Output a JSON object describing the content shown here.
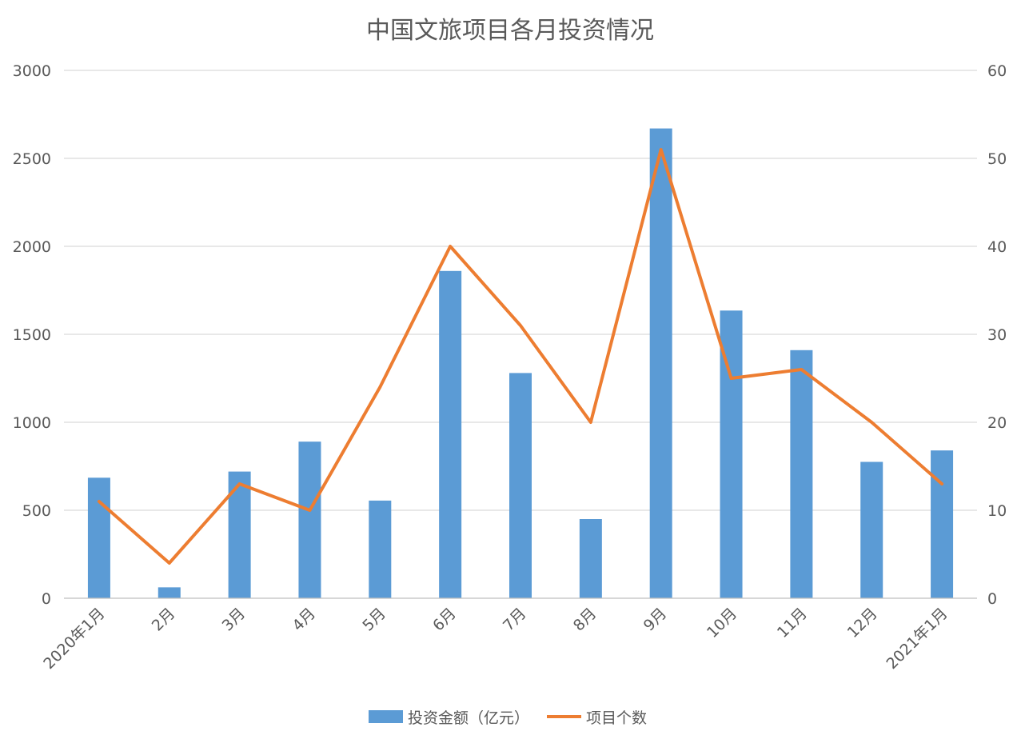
{
  "chart_data": {
    "type": "bar",
    "title": "中国文旅项目各月投资情况",
    "categories": [
      "2020年1月",
      "2月",
      "3月",
      "4月",
      "5月",
      "6月",
      "7月",
      "8月",
      "9月",
      "10月",
      "11月",
      "12月",
      "2021年1月"
    ],
    "series": [
      {
        "name": "投资金额（亿元）",
        "type": "bar",
        "axis": "left",
        "color": "#5B9BD5",
        "values": [
          685,
          62,
          720,
          890,
          555,
          1860,
          1280,
          450,
          2670,
          1635,
          1410,
          775,
          840
        ]
      },
      {
        "name": "项目个数",
        "type": "line",
        "axis": "right",
        "color": "#ED7D31",
        "values": [
          11,
          4,
          13,
          10,
          24,
          40,
          31,
          20,
          51,
          25,
          26,
          20,
          13
        ]
      }
    ],
    "y_left": {
      "ylim": [
        0,
        3000
      ],
      "ticks": [
        "0",
        "500",
        "1000",
        "1500",
        "2000",
        "2500",
        "3000"
      ]
    },
    "y_right": {
      "ylim": [
        0,
        60
      ],
      "ticks": [
        "0",
        "10",
        "20",
        "30",
        "40",
        "50",
        "60"
      ]
    },
    "grid": true,
    "legend_position": "bottom",
    "colors": {
      "grid": "#D9D9D9",
      "text": "#595959",
      "axis": "#BFBFBF"
    }
  }
}
